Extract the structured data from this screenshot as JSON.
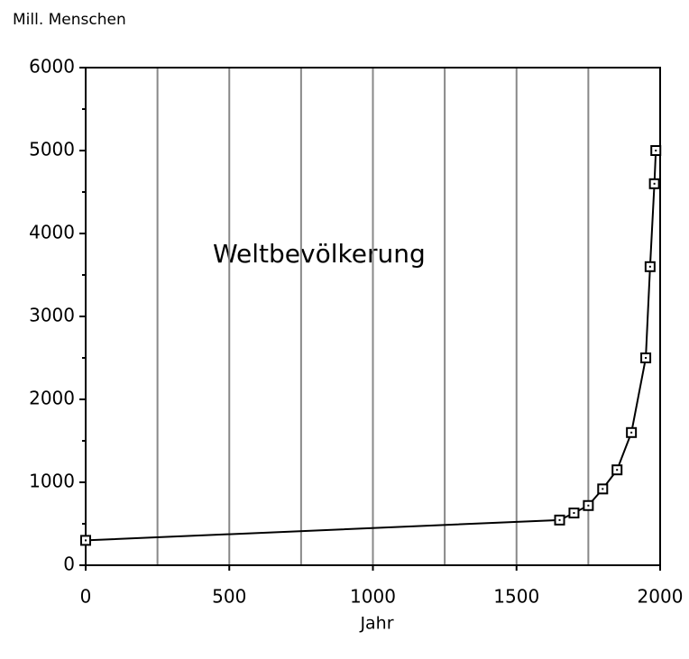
{
  "chart_data": {
    "type": "line",
    "y_label": "Mill. Menschen",
    "x_label": "Jahr",
    "annotation": "Weltbevölkerung",
    "x": [
      0,
      1650,
      1700,
      1750,
      1800,
      1850,
      1900,
      1950,
      1965,
      1980,
      1985
    ],
    "series": [
      {
        "color": "#000000",
        "values": [
          300,
          545,
          630,
          720,
          920,
          1150,
          1600,
          2500,
          3600,
          4600,
          5000
        ]
      }
    ],
    "xlim": [
      0,
      2000
    ],
    "xticks": [
      0,
      500,
      1000,
      1500,
      2000
    ],
    "x_minor_ticks": [
      250,
      500,
      750,
      1000,
      1250,
      1500,
      1750
    ],
    "ylim": [
      0,
      6000
    ],
    "yticks": [
      0,
      1000,
      2000,
      3000,
      4000,
      5000,
      6000
    ],
    "y_minor_ticks": [
      500,
      1500,
      2500,
      3500,
      4500,
      5500
    ],
    "grid": true
  }
}
